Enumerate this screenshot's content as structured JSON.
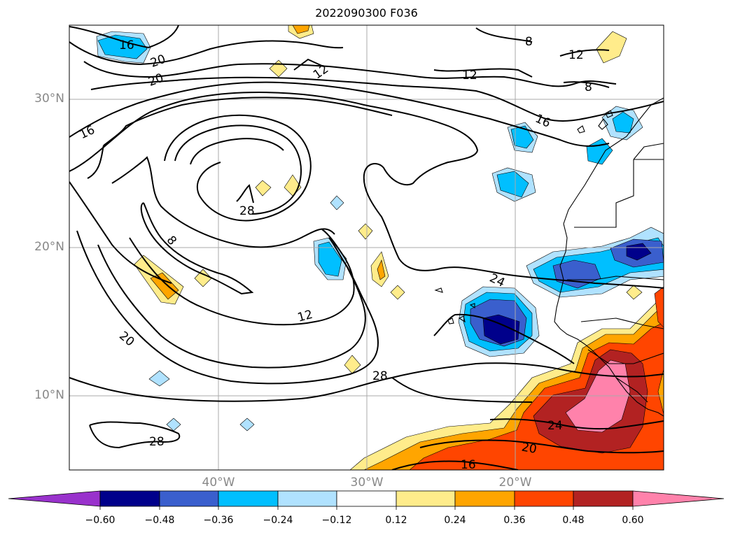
{
  "title": "2022090300 F036",
  "map": {
    "lat_labels": [
      "30°N",
      "20°N",
      "10°N"
    ],
    "lon_labels": [
      "40°W",
      "30°W",
      "20°W"
    ],
    "contour_labels": [
      "16",
      "20",
      "20",
      "12",
      "12",
      "8",
      "12",
      "8",
      "16",
      "16",
      "28",
      "8",
      "12",
      "20",
      "24",
      "28",
      "28",
      "24",
      "20",
      "16"
    ]
  },
  "colorbar": {
    "tick_labels": [
      "−0.60",
      "−0.48",
      "−0.36",
      "−0.24",
      "−0.12",
      "0.12",
      "0.24",
      "0.36",
      "0.48",
      "0.60"
    ],
    "colors": [
      "#9932cc",
      "#00008b",
      "#3a5fcd",
      "#00bfff",
      "#b0e2ff",
      "#ffffff",
      "#ffec8b",
      "#ffa500",
      "#ff4500",
      "#b22222",
      "#ff82ab"
    ]
  }
}
